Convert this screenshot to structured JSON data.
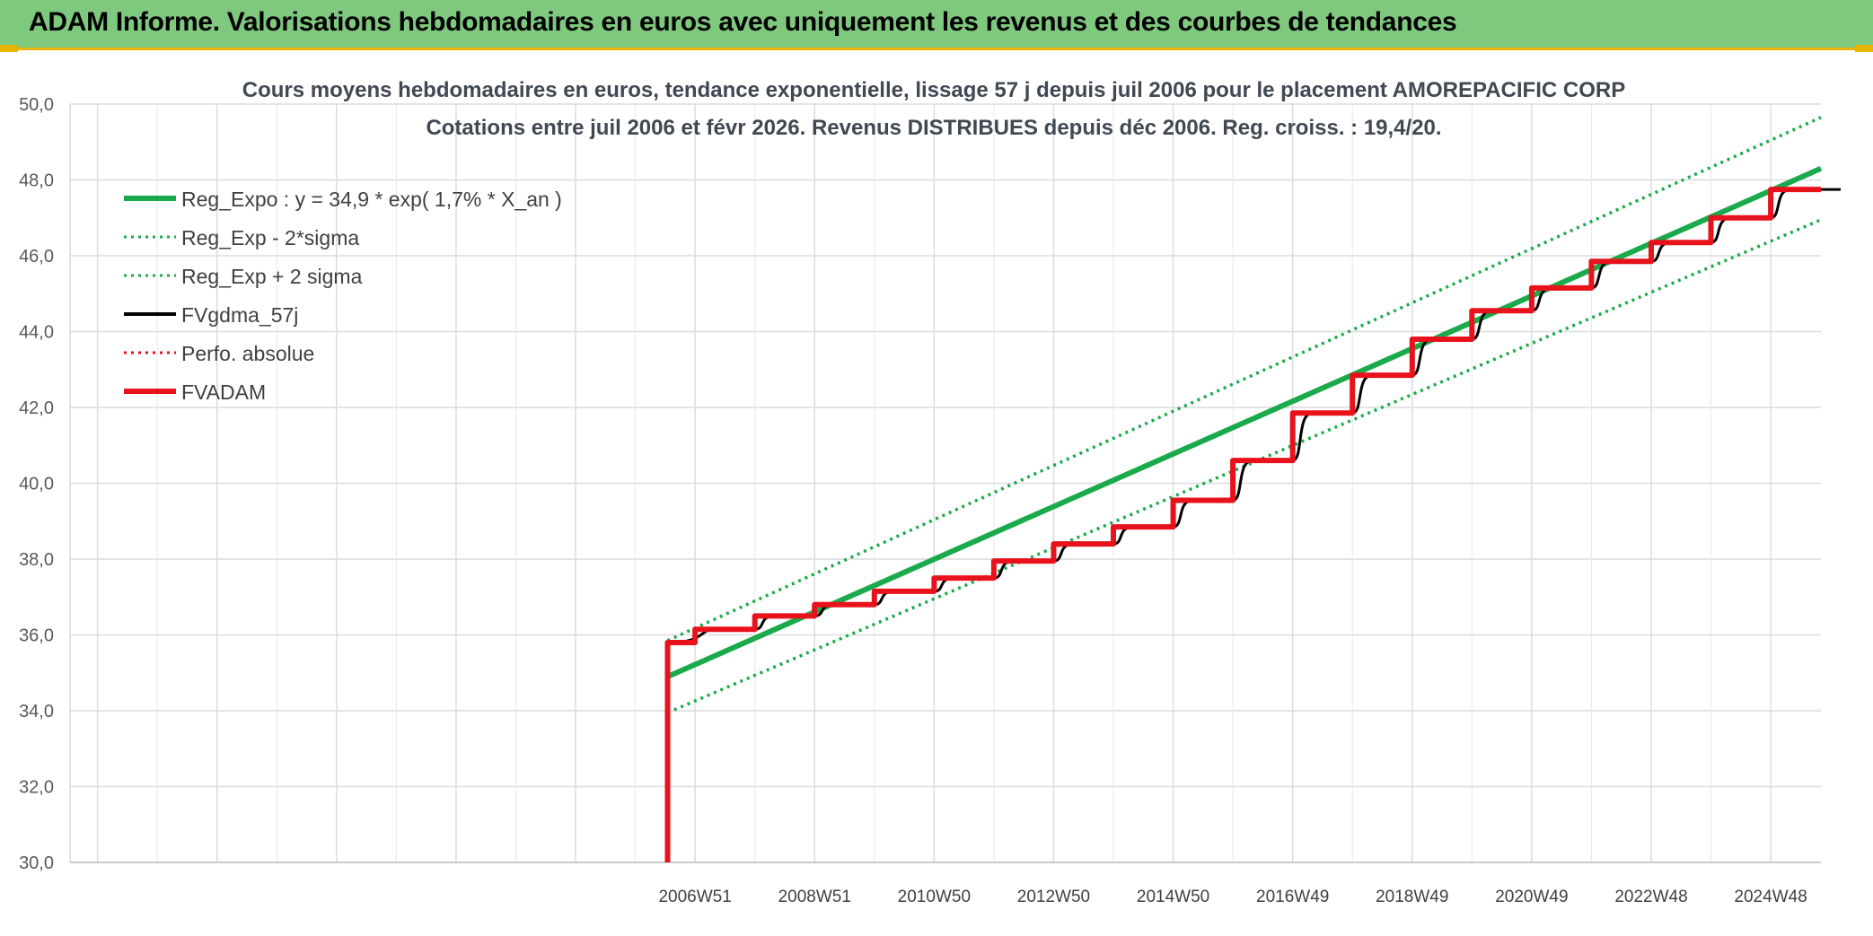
{
  "header": {
    "title": "ADAM Informe. Valorisations hebdomadaires en euros avec uniquement les revenus et des courbes de tendances"
  },
  "colors": {
    "banner": "#7fc97f",
    "accent": "#e8b400",
    "reg_expo": "#1aaa4b",
    "fvgdma": "#000000",
    "fvadam": "#e8121c",
    "perfo": "#e8121c"
  },
  "chart_data": {
    "type": "line",
    "title": "Cours moyens hebdomadaires en euros, tendance exponentielle, lissage 57 j depuis juil 2006 pour le placement AMOREPACIFIC CORP",
    "subtitle": "Cotations entre juil 2006 et févr 2026. Revenus DISTRIBUES depuis déc 2006. Reg. croiss. : 19,4/20.",
    "xlabel": "",
    "ylabel": "",
    "ylim": [
      30,
      50
    ],
    "xlim": [
      1996.5,
      2025.8
    ],
    "grid": true,
    "legend_position": "top-left",
    "y_ticks": [
      "30,0",
      "32,0",
      "34,0",
      "36,0",
      "38,0",
      "40,0",
      "42,0",
      "44,0",
      "46,0",
      "48,0",
      "50,0"
    ],
    "x_ticks": [
      {
        "label": "2006W51",
        "x": 2006.96
      },
      {
        "label": "2008W51",
        "x": 2008.96
      },
      {
        "label": "2010W50",
        "x": 2010.96
      },
      {
        "label": "2012W50",
        "x": 2012.96
      },
      {
        "label": "2014W50",
        "x": 2014.96
      },
      {
        "label": "2016W49",
        "x": 2016.96
      },
      {
        "label": "2018W49",
        "x": 2018.96
      },
      {
        "label": "2020W49",
        "x": 2020.96
      },
      {
        "label": "2022W48",
        "x": 2022.96
      },
      {
        "label": "2024W48",
        "x": 2024.96
      }
    ],
    "series": [
      {
        "name": "Reg_Expo : y = 34,9 * exp( 1,7% *  X_an )",
        "style": "solid-thick",
        "color": "#1aaa4b",
        "x": [
          2006.5,
          2025.8
        ],
        "y": [
          34.9,
          48.3
        ]
      },
      {
        "name": "Reg_Exp - 2*sigma",
        "style": "dotted",
        "color": "#1aaa4b",
        "x": [
          2006.5,
          2025.8
        ],
        "y": [
          33.95,
          46.95
        ]
      },
      {
        "name": "Reg_Exp + 2 sigma",
        "style": "dotted",
        "color": "#1aaa4b",
        "x": [
          2006.5,
          2025.8
        ],
        "y": [
          35.85,
          49.65
        ]
      },
      {
        "name": "FVgdma_57j",
        "style": "solid",
        "color": "#000000",
        "x": [
          2006.5,
          2006.5,
          2006.96,
          2007.96,
          2008.96,
          2009.96,
          2010.96,
          2011.96,
          2012.96,
          2013.96,
          2014.96,
          2015.96,
          2016.96,
          2017.96,
          2018.96,
          2019.96,
          2020.96,
          2021.96,
          2022.96,
          2023.96,
          2024.96,
          2025.8
        ],
        "y": [
          30.0,
          35.8,
          36.15,
          36.5,
          36.8,
          37.15,
          37.5,
          37.95,
          38.4,
          38.85,
          39.55,
          40.6,
          41.85,
          42.85,
          43.8,
          44.55,
          45.15,
          45.85,
          46.35,
          47.0,
          47.75,
          47.75
        ]
      },
      {
        "name": "Perfo. absolue",
        "style": "dotted",
        "color": "#e8121c",
        "x": [],
        "y": []
      },
      {
        "name": "FVADAM",
        "style": "solid-thick",
        "color": "#e8121c",
        "x": [
          2006.5,
          2006.5,
          2006.96,
          2007.96,
          2008.96,
          2009.96,
          2010.96,
          2011.96,
          2012.96,
          2013.96,
          2014.96,
          2015.96,
          2016.96,
          2017.96,
          2018.96,
          2019.96,
          2020.96,
          2021.96,
          2022.96,
          2023.96,
          2024.96,
          2025.8
        ],
        "y": [
          30.0,
          35.8,
          36.15,
          36.5,
          36.8,
          37.15,
          37.5,
          37.95,
          38.4,
          38.85,
          39.55,
          40.6,
          41.85,
          42.85,
          43.8,
          44.55,
          45.15,
          45.85,
          46.35,
          47.0,
          47.75,
          47.75
        ]
      }
    ]
  }
}
